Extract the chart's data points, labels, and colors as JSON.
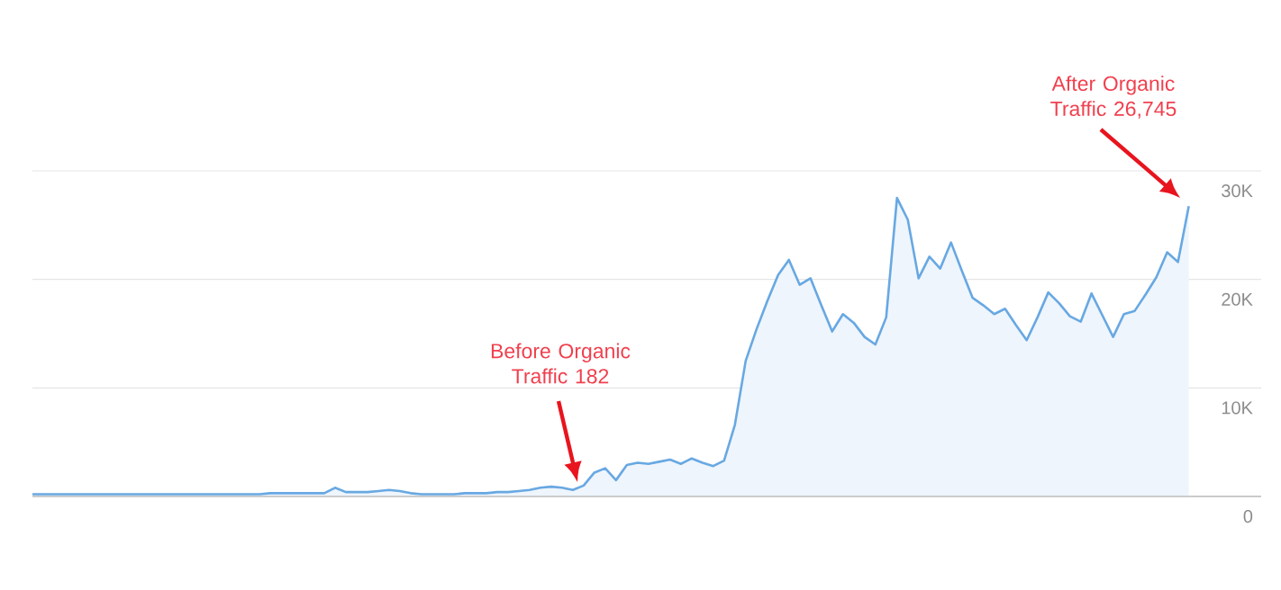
{
  "chart_data": {
    "type": "area",
    "categories": [
      null,
      null,
      null,
      null,
      null,
      null,
      null,
      null,
      null,
      null,
      null,
      null,
      null,
      null,
      null,
      null,
      null,
      null,
      null,
      null,
      null,
      null,
      null,
      null,
      null,
      null,
      null,
      null,
      null,
      null,
      null,
      null,
      null,
      null,
      null,
      null,
      null,
      null,
      null,
      null,
      null,
      null,
      null,
      null,
      null,
      null,
      null,
      null,
      null,
      null,
      null,
      null,
      null,
      null,
      null,
      null,
      null,
      null,
      null,
      null,
      null,
      null,
      null,
      null,
      null,
      null,
      null,
      null,
      null,
      null,
      null,
      null,
      null,
      null,
      null,
      null,
      null,
      null,
      null,
      null,
      null,
      null,
      null,
      null,
      null,
      null,
      null,
      null,
      null,
      null,
      null,
      null,
      null,
      null,
      null,
      null,
      null,
      null,
      null,
      null,
      null,
      null,
      null,
      null,
      null,
      null,
      null,
      null
    ],
    "values": [
      200,
      200,
      200,
      200,
      200,
      200,
      200,
      200,
      200,
      200,
      200,
      200,
      200,
      200,
      200,
      200,
      200,
      200,
      200,
      200,
      200,
      200,
      300,
      300,
      300,
      300,
      300,
      300,
      800,
      400,
      400,
      400,
      500,
      600,
      500,
      300,
      200,
      200,
      200,
      200,
      300,
      300,
      300,
      400,
      400,
      500,
      600,
      800,
      900,
      800,
      600,
      1000,
      2200,
      2600,
      1500,
      2900,
      3100,
      3000,
      3200,
      3400,
      3000,
      3500,
      3100,
      2800,
      3300,
      6600,
      12500,
      15400,
      18000,
      20400,
      21800,
      19500,
      20100,
      17600,
      15200,
      16800,
      16000,
      14700,
      14000,
      16500,
      27500,
      25500,
      20100,
      22100,
      21000,
      23400,
      20800,
      18300,
      17600,
      16800,
      17300,
      15800,
      14400,
      16500,
      18800,
      17800,
      16600,
      16100,
      18700,
      16700,
      14700,
      16800,
      17100,
      18600,
      20200,
      22500,
      21600,
      26745
    ],
    "color": "#68a8e2",
    "ylim": [
      0,
      30000
    ],
    "yticks": [
      0,
      {
        "value": 10000,
        "label": "10K"
      },
      {
        "value": 20000,
        "label": "20K"
      },
      {
        "value": 30000,
        "label": "30K"
      }
    ],
    "grid": "y",
    "tick_labels": "y",
    "annotations": [
      "Before Organic Traffic 182",
      "After Organic Traffic 26,745"
    ]
  }
}
